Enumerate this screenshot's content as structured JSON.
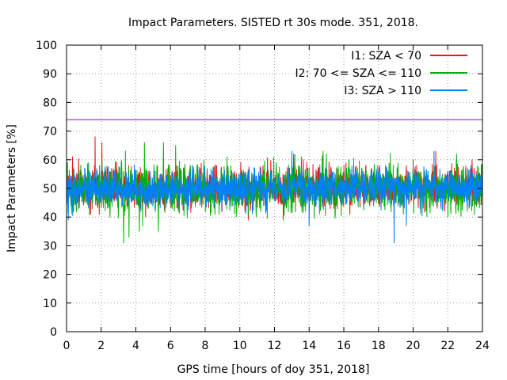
{
  "chart_data": {
    "type": "line",
    "title": "Impact Parameters. SISTED rt 30s mode. 351, 2018.",
    "xlabel": "GPS time [hours of doy 351, 2018]",
    "ylabel": "Impact Parameters [%]",
    "xlim": [
      0,
      24
    ],
    "ylim": [
      0,
      100
    ],
    "xticks": [
      0,
      2,
      4,
      6,
      8,
      10,
      12,
      14,
      16,
      18,
      20,
      22,
      24
    ],
    "yticks": [
      0,
      10,
      20,
      30,
      40,
      50,
      60,
      70,
      80,
      90,
      100
    ],
    "grid": true,
    "legend_position": "top-right",
    "threshold": {
      "value": 74,
      "color": "#9400d3"
    },
    "series": [
      {
        "name": "I1: SZA < 70",
        "color": "#e41a1c",
        "center": 50.5,
        "noise_amplitude": 8,
        "range_min": 39,
        "range_max": 68,
        "peaks": [
          [
            1.65,
            68
          ],
          [
            2.05,
            66
          ],
          [
            0.35,
            61
          ],
          [
            13.1,
            62
          ],
          [
            21.3,
            63
          ],
          [
            23.4,
            60
          ],
          [
            10.5,
            39
          ],
          [
            12.5,
            39
          ]
        ]
      },
      {
        "name": "I2: 70 <= SZA <= 110",
        "color": "#00b000",
        "center": 50,
        "noise_amplitude": 9,
        "range_min": 31,
        "range_max": 66,
        "peaks": [
          [
            3.3,
            31
          ],
          [
            3.6,
            33
          ],
          [
            4.2,
            35
          ],
          [
            4.4,
            37
          ],
          [
            5.3,
            35
          ],
          [
            2.5,
            40
          ],
          [
            4.5,
            66
          ],
          [
            5.6,
            66
          ],
          [
            6.3,
            65
          ],
          [
            3.4,
            63
          ],
          [
            14.8,
            63
          ],
          [
            15.0,
            62
          ],
          [
            22.5,
            62
          ]
        ]
      },
      {
        "name": "I3: SZA > 110",
        "color": "#0080ff",
        "center": 50,
        "noise_amplitude": 7,
        "range_min": 31,
        "range_max": 63,
        "peaks": [
          [
            18.9,
            31
          ],
          [
            14.0,
            37
          ],
          [
            19.6,
            37
          ],
          [
            13.0,
            63
          ],
          [
            21.2,
            63
          ],
          [
            0.1,
            39
          ]
        ]
      }
    ]
  }
}
